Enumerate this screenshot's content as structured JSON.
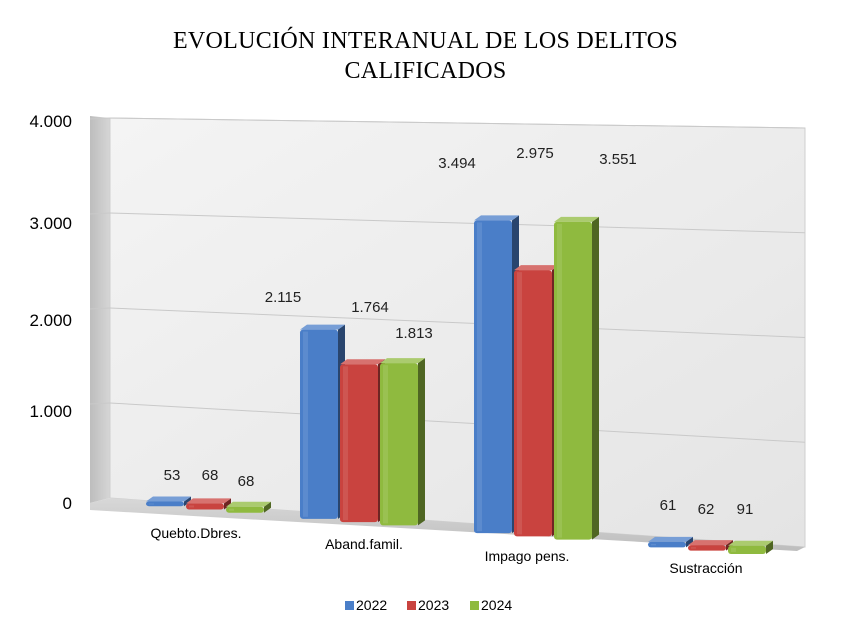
{
  "chart_data": {
    "type": "bar",
    "title": [
      "EVOLUCIÓN INTERANUAL DE LOS DELITOS",
      "CALIFICADOS"
    ],
    "categories": [
      "Quebto.Dbres.",
      "Aband.famil.",
      "Impago pens.",
      "Sustracción"
    ],
    "series": [
      {
        "name": "2022",
        "color": "#4a7ec8",
        "values": [
          53,
          2115,
          3494,
          61
        ],
        "labels": [
          "53",
          "2.115",
          "3.494",
          "61"
        ]
      },
      {
        "name": "2023",
        "color": "#c9433f",
        "values": [
          68,
          1764,
          2975,
          62
        ],
        "labels": [
          "68",
          "1.764",
          "2.975",
          "62"
        ]
      },
      {
        "name": "2024",
        "color": "#8fba3f",
        "values": [
          68,
          1813,
          3551,
          91
        ],
        "labels": [
          "68",
          "1.813",
          "3.551",
          "91"
        ]
      }
    ],
    "yticks": [
      {
        "value": 0,
        "label": "0"
      },
      {
        "value": 1000,
        "label": "1.000"
      },
      {
        "value": 2000,
        "label": "2.000"
      },
      {
        "value": 3000,
        "label": "3.000"
      },
      {
        "value": 4000,
        "label": "4.000"
      }
    ],
    "ylim": [
      0,
      4000
    ],
    "grid": true,
    "legend": "bottom",
    "style": "3d-perspective"
  }
}
